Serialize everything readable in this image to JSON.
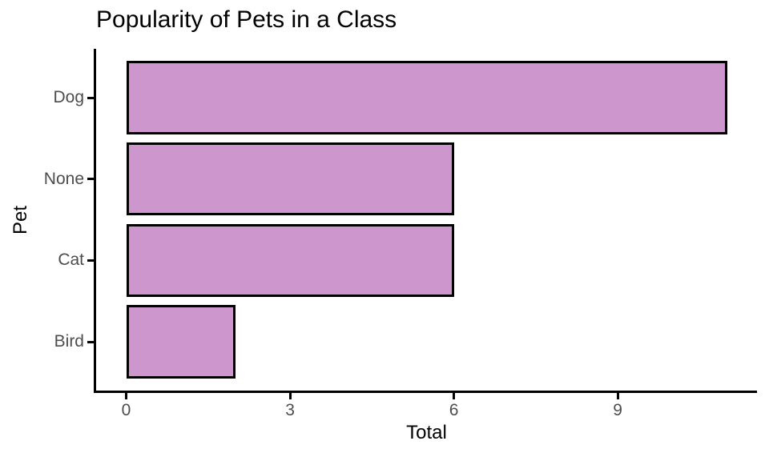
{
  "chart_data": {
    "type": "bar",
    "orientation": "horizontal",
    "title": "Popularity of Pets in a Class",
    "xlabel": "Total",
    "ylabel": "Pet",
    "categories": [
      "Dog",
      "None",
      "Cat",
      "Bird"
    ],
    "values": [
      11,
      6,
      6,
      2
    ],
    "xticks": [
      0,
      3,
      6,
      9
    ],
    "xlim": [
      -0.55,
      11.55
    ],
    "bar_width_fraction": 0.9,
    "grid": false,
    "legend_position": "none",
    "colors": {
      "bar_fill": "#CD96CD",
      "bar_stroke": "#000000",
      "axis_line": "#000000",
      "tick_label": "#4D4D4D",
      "axis_title": "#000000",
      "title": "#000000",
      "background": "#FFFFFF"
    }
  }
}
